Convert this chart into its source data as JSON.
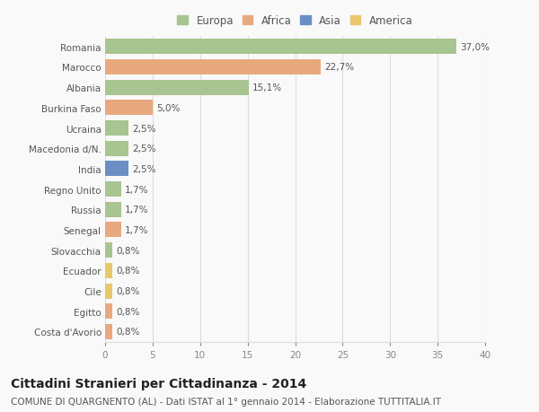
{
  "categories": [
    "Romania",
    "Marocco",
    "Albania",
    "Burkina Faso",
    "Ucraina",
    "Macedonia d/N.",
    "India",
    "Regno Unito",
    "Russia",
    "Senegal",
    "Slovacchia",
    "Ecuador",
    "Cile",
    "Egitto",
    "Costa d'Avorio"
  ],
  "values": [
    37.0,
    22.7,
    15.1,
    5.0,
    2.5,
    2.5,
    2.5,
    1.7,
    1.7,
    1.7,
    0.8,
    0.8,
    0.8,
    0.8,
    0.8
  ],
  "labels": [
    "37,0%",
    "22,7%",
    "15,1%",
    "5,0%",
    "2,5%",
    "2,5%",
    "2,5%",
    "1,7%",
    "1,7%",
    "1,7%",
    "0,8%",
    "0,8%",
    "0,8%",
    "0,8%",
    "0,8%"
  ],
  "colors": [
    "#a8c490",
    "#e8a97e",
    "#a8c490",
    "#e8a97e",
    "#a8c490",
    "#a8c490",
    "#6b8ec4",
    "#a8c490",
    "#a8c490",
    "#e8a97e",
    "#a8c490",
    "#e8c86a",
    "#e8c86a",
    "#e8a97e",
    "#e8a97e"
  ],
  "continent_colors": {
    "Europa": "#a8c490",
    "Africa": "#e8a97e",
    "Asia": "#6b8ec4",
    "America": "#e8c86a"
  },
  "legend_labels": [
    "Europa",
    "Africa",
    "Asia",
    "America"
  ],
  "xlim": [
    0,
    40
  ],
  "xticks": [
    0,
    5,
    10,
    15,
    20,
    25,
    30,
    35,
    40
  ],
  "title": "Cittadini Stranieri per Cittadinanza - 2014",
  "subtitle": "COMUNE DI QUARGNENTO (AL) - Dati ISTAT al 1° gennaio 2014 - Elaborazione TUTTITALIA.IT",
  "bg_color": "#f9f9f9",
  "grid_color": "#dddddd",
  "bar_height": 0.75,
  "label_fontsize": 7.5,
  "tick_fontsize": 7.5,
  "title_fontsize": 10,
  "subtitle_fontsize": 7.5
}
